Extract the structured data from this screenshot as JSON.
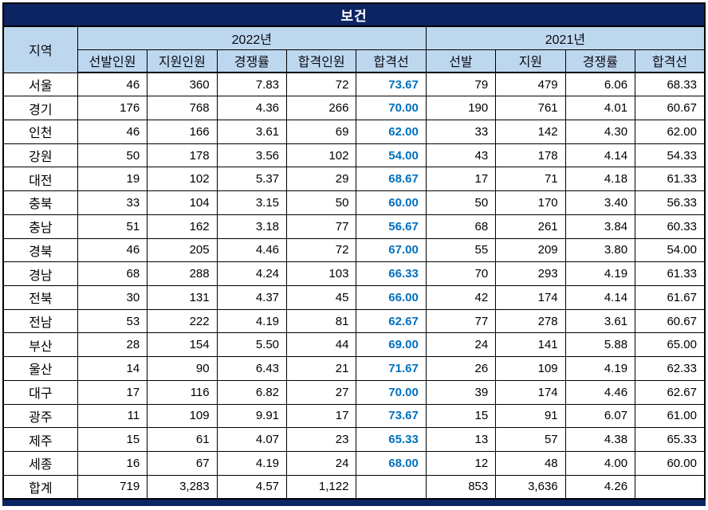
{
  "colors": {
    "title_bg": "#0d2463",
    "header_bg": "#bdd7ee",
    "accent_blue_text": "#0070c0",
    "grid_border": "#000000",
    "bottom_bar": "#0d2463"
  },
  "chart_data": {
    "type": "table",
    "title": "보건",
    "region_header": "지역",
    "groups": [
      {
        "label": "2022년",
        "columns": [
          "선발인원",
          "지원인원",
          "경쟁률",
          "합격인원",
          "합격선"
        ]
      },
      {
        "label": "2021년",
        "columns": [
          "선발",
          "지원",
          "경쟁률",
          "합격선"
        ]
      }
    ],
    "highlight_column_index": 5,
    "rows": [
      {
        "cells": [
          "서울",
          "46",
          "360",
          "7.83",
          "72",
          "73.67",
          "79",
          "479",
          "6.06",
          "68.33"
        ]
      },
      {
        "cells": [
          "경기",
          "176",
          "768",
          "4.36",
          "266",
          "70.00",
          "190",
          "761",
          "4.01",
          "60.67"
        ]
      },
      {
        "cells": [
          "인천",
          "46",
          "166",
          "3.61",
          "69",
          "62.00",
          "33",
          "142",
          "4.30",
          "62.00"
        ]
      },
      {
        "cells": [
          "강원",
          "50",
          "178",
          "3.56",
          "102",
          "54.00",
          "43",
          "178",
          "4.14",
          "54.33"
        ]
      },
      {
        "cells": [
          "대전",
          "19",
          "102",
          "5.37",
          "29",
          "68.67",
          "17",
          "71",
          "4.18",
          "61.33"
        ]
      },
      {
        "cells": [
          "충북",
          "33",
          "104",
          "3.15",
          "50",
          "60.00",
          "50",
          "170",
          "3.40",
          "56.33"
        ]
      },
      {
        "cells": [
          "충남",
          "51",
          "162",
          "3.18",
          "77",
          "56.67",
          "68",
          "261",
          "3.84",
          "60.33"
        ]
      },
      {
        "cells": [
          "경북",
          "46",
          "205",
          "4.46",
          "72",
          "67.00",
          "55",
          "209",
          "3.80",
          "54.00"
        ]
      },
      {
        "cells": [
          "경남",
          "68",
          "288",
          "4.24",
          "103",
          "66.33",
          "70",
          "293",
          "4.19",
          "61.33"
        ]
      },
      {
        "cells": [
          "전북",
          "30",
          "131",
          "4.37",
          "45",
          "66.00",
          "42",
          "174",
          "4.14",
          "61.67"
        ]
      },
      {
        "cells": [
          "전남",
          "53",
          "222",
          "4.19",
          "81",
          "62.67",
          "77",
          "278",
          "3.61",
          "60.67"
        ]
      },
      {
        "cells": [
          "부산",
          "28",
          "154",
          "5.50",
          "44",
          "69.00",
          "24",
          "141",
          "5.88",
          "65.00"
        ]
      },
      {
        "cells": [
          "울산",
          "14",
          "90",
          "6.43",
          "21",
          "71.67",
          "26",
          "109",
          "4.19",
          "62.33"
        ]
      },
      {
        "cells": [
          "대구",
          "17",
          "116",
          "6.82",
          "27",
          "70.00",
          "39",
          "174",
          "4.46",
          "62.67"
        ]
      },
      {
        "cells": [
          "광주",
          "11",
          "109",
          "9.91",
          "17",
          "73.67",
          "15",
          "91",
          "6.07",
          "61.00"
        ]
      },
      {
        "cells": [
          "제주",
          "15",
          "61",
          "4.07",
          "23",
          "65.33",
          "13",
          "57",
          "4.38",
          "65.33"
        ]
      },
      {
        "cells": [
          "세종",
          "16",
          "67",
          "4.19",
          "24",
          "68.00",
          "12",
          "48",
          "4.00",
          "60.00"
        ]
      },
      {
        "cells": [
          "합계",
          "719",
          "3,283",
          "4.57",
          "1,122",
          "",
          "853",
          "3,636",
          "4.26",
          ""
        ]
      }
    ]
  }
}
